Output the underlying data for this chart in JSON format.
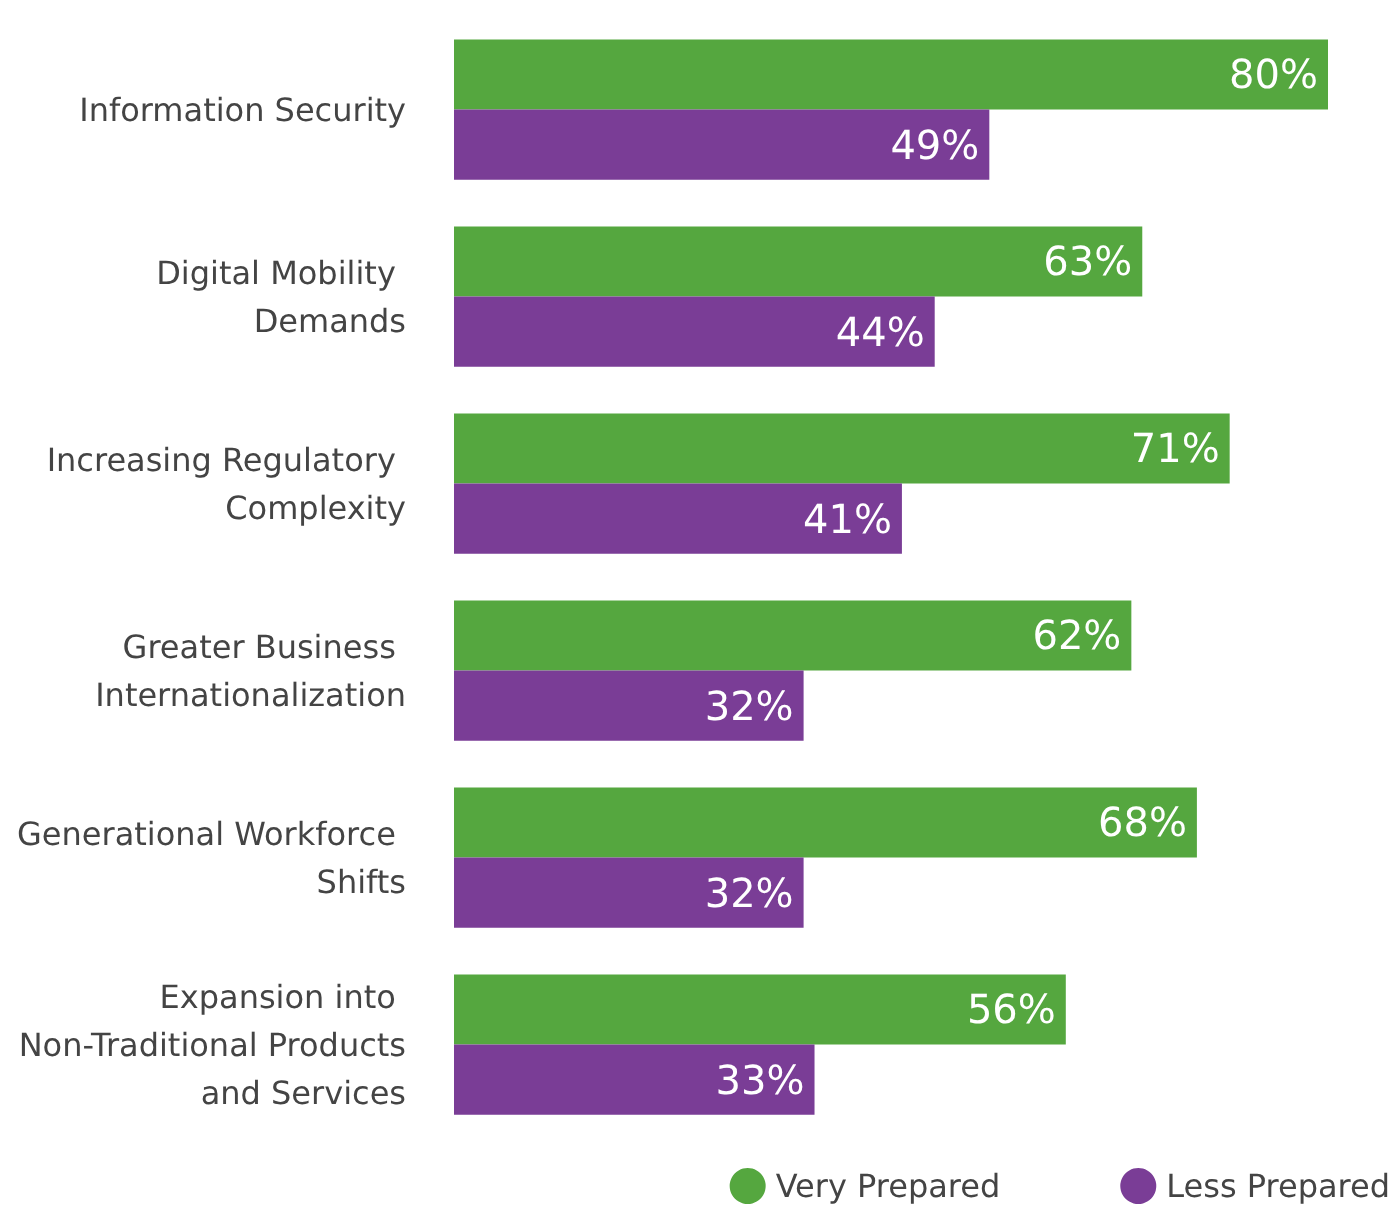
{
  "chart_data": {
    "type": "bar",
    "orientation": "horizontal",
    "categories": [
      "Information Security",
      "Digital Mobility Demands",
      "Increasing Regulatory Complexity",
      "Greater Business Internationalization",
      "Generational Workforce Shifts",
      "Expansion into Non-Traditional Products and Services"
    ],
    "series": [
      {
        "name": "Very Prepared",
        "color": "#55a73f",
        "values": [
          80,
          63,
          71,
          62,
          68,
          56
        ],
        "value_labels": [
          "80%",
          "63%",
          "71%",
          "62%",
          "68%",
          "56%"
        ]
      },
      {
        "name": "Less Prepared",
        "color": "#7a3d96",
        "values": [
          49,
          44,
          41,
          32,
          32,
          33
        ],
        "value_labels": [
          "49%",
          "44%",
          "41%",
          "32%",
          "32%",
          "33%"
        ]
      }
    ],
    "legend": "bottom right",
    "grid": false
  }
}
